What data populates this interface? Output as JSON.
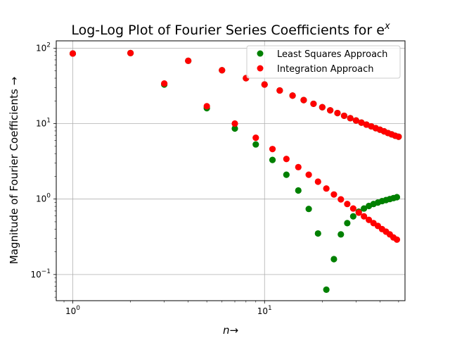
{
  "chart_data": {
    "type": "scatter",
    "title": "Log-Log Plot of Fourier Series Coefficients for e",
    "title_superscript": "x",
    "xlabel": "n",
    "xlabel_arrow": "→",
    "ylabel": "Magnitude of Fourier Coefficients →",
    "xscale": "log",
    "yscale": "log",
    "xlim": [
      0.82,
      54
    ],
    "ylim": [
      0.045,
      125
    ],
    "grid": true,
    "legend_position": "top-right",
    "x_major_ticks": [
      {
        "value": 1,
        "base": "10",
        "exp": "0"
      },
      {
        "value": 10,
        "base": "10",
        "exp": "1"
      }
    ],
    "y_major_ticks": [
      {
        "value": 0.1,
        "base": "10",
        "exp": "−1"
      },
      {
        "value": 1,
        "base": "10",
        "exp": "0"
      },
      {
        "value": 10,
        "base": "10",
        "exp": "1"
      },
      {
        "value": 100,
        "base": "10",
        "exp": "2"
      }
    ],
    "series": [
      {
        "name": "Least Squares Approach",
        "color": "#008000",
        "points": [
          [
            1,
            85
          ],
          [
            2,
            86
          ],
          [
            3,
            33
          ],
          [
            4,
            68
          ],
          [
            5,
            16
          ],
          [
            6,
            51
          ],
          [
            7,
            8.6
          ],
          [
            8,
            40
          ],
          [
            9,
            5.3
          ],
          [
            10,
            33
          ],
          [
            11,
            3.3
          ],
          [
            12,
            27.5
          ],
          [
            13,
            2.1
          ],
          [
            14,
            23.5
          ],
          [
            15,
            1.3
          ],
          [
            16,
            20.5
          ],
          [
            17,
            0.74
          ],
          [
            18,
            18.3
          ],
          [
            19,
            0.35
          ],
          [
            20,
            16.5
          ],
          [
            21,
            0.063
          ],
          [
            22,
            15.0
          ],
          [
            23,
            0.16
          ],
          [
            24,
            13.8
          ],
          [
            25,
            0.34
          ],
          [
            26,
            12.7
          ],
          [
            27,
            0.48
          ],
          [
            28,
            11.8
          ],
          [
            29,
            0.59
          ],
          [
            30,
            11.0
          ],
          [
            31,
            0.68
          ],
          [
            32,
            10.3
          ],
          [
            33,
            0.75
          ],
          [
            34,
            9.7
          ],
          [
            35,
            0.81
          ],
          [
            36,
            9.2
          ],
          [
            37,
            0.86
          ],
          [
            38,
            8.7
          ],
          [
            39,
            0.9
          ],
          [
            40,
            8.3
          ],
          [
            41,
            0.94
          ],
          [
            42,
            7.9
          ],
          [
            43,
            0.97
          ],
          [
            44,
            7.5
          ],
          [
            45,
            1.0
          ],
          [
            46,
            7.2
          ],
          [
            47,
            1.03
          ],
          [
            48,
            6.9
          ],
          [
            49,
            1.06
          ],
          [
            50,
            6.7
          ]
        ]
      },
      {
        "name": "Integration Approach",
        "color": "#ff0000",
        "points": [
          [
            1,
            85
          ],
          [
            2,
            86
          ],
          [
            3,
            34
          ],
          [
            4,
            68
          ],
          [
            5,
            17
          ],
          [
            6,
            51
          ],
          [
            7,
            10
          ],
          [
            8,
            40
          ],
          [
            9,
            6.5
          ],
          [
            10,
            33
          ],
          [
            11,
            4.6
          ],
          [
            12,
            27.5
          ],
          [
            13,
            3.4
          ],
          [
            14,
            23.5
          ],
          [
            15,
            2.65
          ],
          [
            16,
            20.5
          ],
          [
            17,
            2.1
          ],
          [
            18,
            18.3
          ],
          [
            19,
            1.7
          ],
          [
            20,
            16.5
          ],
          [
            21,
            1.38
          ],
          [
            22,
            15.0
          ],
          [
            23,
            1.15
          ],
          [
            24,
            13.8
          ],
          [
            25,
            0.99
          ],
          [
            26,
            12.7
          ],
          [
            27,
            0.86
          ],
          [
            28,
            11.8
          ],
          [
            29,
            0.75
          ],
          [
            30,
            11.0
          ],
          [
            31,
            0.66
          ],
          [
            32,
            10.3
          ],
          [
            33,
            0.59
          ],
          [
            34,
            9.7
          ],
          [
            35,
            0.53
          ],
          [
            36,
            9.2
          ],
          [
            37,
            0.48
          ],
          [
            38,
            8.7
          ],
          [
            39,
            0.44
          ],
          [
            40,
            8.3
          ],
          [
            41,
            0.4
          ],
          [
            42,
            7.9
          ],
          [
            43,
            0.37
          ],
          [
            44,
            7.5
          ],
          [
            45,
            0.34
          ],
          [
            46,
            7.2
          ],
          [
            47,
            0.31
          ],
          [
            48,
            6.9
          ],
          [
            49,
            0.29
          ],
          [
            50,
            6.7
          ]
        ]
      }
    ]
  }
}
